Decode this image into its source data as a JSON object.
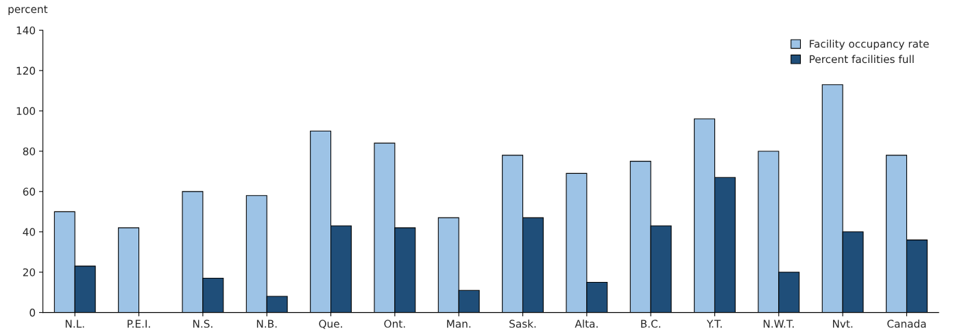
{
  "chart_data": {
    "type": "bar",
    "ylabel": "percent",
    "categories": [
      "N.L.",
      "P.E.I.",
      "N.S.",
      "N.B.",
      "Que.",
      "Ont.",
      "Man.",
      "Sask.",
      "Alta.",
      "B.C.",
      "Y.T.",
      "N.W.T.",
      "Nvt.",
      "Canada"
    ],
    "series": [
      {
        "name": "Facility occupancy rate",
        "color": "#9dc3e6",
        "values": [
          50,
          42,
          60,
          58,
          90,
          84,
          47,
          78,
          69,
          75,
          96,
          80,
          113,
          78
        ]
      },
      {
        "name": "Percent facilities full",
        "color": "#1f4e79",
        "values": [
          23,
          null,
          17,
          8,
          43,
          42,
          11,
          47,
          15,
          43,
          67,
          20,
          40,
          36
        ]
      }
    ],
    "ylim": [
      0,
      140
    ],
    "yticks": [
      0,
      20,
      40,
      60,
      80,
      100,
      120,
      140
    ],
    "grid": false,
    "legend": "top right"
  }
}
